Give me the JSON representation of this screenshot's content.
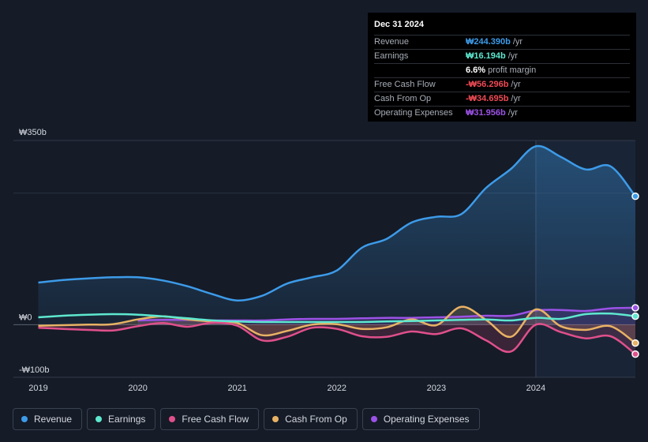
{
  "chart_data": {
    "type": "area",
    "currency": "₩",
    "y_unit": "b",
    "ylim": [
      -100,
      350
    ],
    "y_ticks": [
      {
        "value": 350,
        "label": "₩350b"
      },
      {
        "value": 0,
        "label": "₩0"
      },
      {
        "value": -100,
        "label": "-₩100b"
      }
    ],
    "x_ticks": [
      {
        "value": 2019,
        "label": "2019"
      },
      {
        "value": 2020,
        "label": "2020"
      },
      {
        "value": 2021,
        "label": "2021"
      },
      {
        "value": 2022,
        "label": "2022"
      },
      {
        "value": 2023,
        "label": "2023"
      },
      {
        "value": 2024,
        "label": "2024"
      }
    ],
    "xlim": [
      2018.75,
      2025.0
    ],
    "highlight_from": 2024.0,
    "series": [
      {
        "name": "Revenue",
        "color": "#3d9be9",
        "fill": true,
        "x": [
          2019.0,
          2019.25,
          2019.5,
          2019.75,
          2020.0,
          2020.25,
          2020.5,
          2020.75,
          2021.0,
          2021.25,
          2021.5,
          2021.75,
          2022.0,
          2022.25,
          2022.5,
          2022.75,
          2023.0,
          2023.25,
          2023.5,
          2023.75,
          2024.0,
          2024.25,
          2024.5,
          2024.75,
          2025.0
        ],
        "values": [
          80,
          85,
          88,
          90,
          90,
          84,
          73,
          58,
          46,
          55,
          78,
          90,
          103,
          146,
          163,
          194,
          205,
          210,
          260,
          296,
          339,
          319,
          295,
          301,
          244
        ]
      },
      {
        "name": "Earnings",
        "color": "#5ee8d0",
        "fill": false,
        "x": [
          2019.0,
          2019.25,
          2019.5,
          2019.75,
          2020.0,
          2020.25,
          2020.5,
          2020.75,
          2021.0,
          2021.25,
          2021.5,
          2021.75,
          2022.0,
          2022.25,
          2022.5,
          2022.75,
          2023.0,
          2023.25,
          2023.5,
          2023.75,
          2024.0,
          2024.25,
          2024.5,
          2024.75,
          2025.0
        ],
        "values": [
          14,
          17,
          19,
          20,
          19,
          16,
          12,
          8,
          6,
          5,
          5,
          5,
          5,
          5,
          6,
          7,
          8,
          9,
          10,
          8,
          13,
          11,
          20,
          21,
          16
        ]
      },
      {
        "name": "Free Cash Flow",
        "color": "#e0508b",
        "fill": true,
        "x": [
          2019.0,
          2019.25,
          2019.5,
          2019.75,
          2020.0,
          2020.25,
          2020.5,
          2020.75,
          2021.0,
          2021.25,
          2021.5,
          2021.75,
          2022.0,
          2022.25,
          2022.5,
          2022.75,
          2023.0,
          2023.25,
          2023.5,
          2023.75,
          2024.0,
          2024.25,
          2024.5,
          2024.75,
          2025.0
        ],
        "values": [
          -6,
          -8,
          -10,
          -11,
          -3,
          3,
          -4,
          4,
          -2,
          -30,
          -23,
          -6,
          -8,
          -22,
          -23,
          -13,
          -18,
          -7,
          -30,
          -51,
          0,
          -14,
          -26,
          -22,
          -56
        ]
      },
      {
        "name": "Cash From Op",
        "color": "#e8b264",
        "fill": true,
        "x": [
          2019.0,
          2019.25,
          2019.5,
          2019.75,
          2020.0,
          2020.25,
          2020.5,
          2020.75,
          2021.0,
          2021.25,
          2021.5,
          2021.75,
          2022.0,
          2022.25,
          2022.5,
          2022.75,
          2023.0,
          2023.25,
          2023.5,
          2023.75,
          2024.0,
          2024.25,
          2024.5,
          2024.75,
          2025.0
        ],
        "values": [
          -2,
          -1,
          0,
          1,
          10,
          16,
          10,
          6,
          3,
          -20,
          -12,
          0,
          1,
          -8,
          -5,
          10,
          -1,
          34,
          9,
          -23,
          29,
          -3,
          -10,
          -3,
          -35
        ]
      },
      {
        "name": "Operating Expenses",
        "color": "#9b52e6",
        "fill": true,
        "x": [
          2020.0,
          2020.25,
          2020.5,
          2020.75,
          2021.0,
          2021.25,
          2021.5,
          2021.75,
          2022.0,
          2022.25,
          2022.5,
          2022.75,
          2023.0,
          2023.25,
          2023.5,
          2023.75,
          2024.0,
          2024.25,
          2024.5,
          2024.75,
          2025.0
        ],
        "values": [
          8,
          9,
          9,
          8,
          8,
          8,
          10,
          11,
          11,
          12,
          13,
          13,
          14,
          15,
          17,
          17,
          27,
          28,
          26,
          31,
          32
        ]
      }
    ]
  },
  "tooltip": {
    "date": "Dec 31 2024",
    "rows": [
      {
        "label": "Revenue",
        "value": "₩244.390b",
        "unit": "/yr",
        "color": "#3d9be9"
      },
      {
        "label": "Earnings",
        "value": "₩16.194b",
        "unit": "/yr",
        "color": "#5ee8d0"
      },
      {
        "label": "",
        "value": "6.6%",
        "unit": "profit margin",
        "color": "#ffffff"
      },
      {
        "label": "Free Cash Flow",
        "value": "-₩56.296b",
        "unit": "/yr",
        "color": "#ef4a55"
      },
      {
        "label": "Cash From Op",
        "value": "-₩34.695b",
        "unit": "/yr",
        "color": "#ef4a55"
      },
      {
        "label": "Operating Expenses",
        "value": "₩31.956b",
        "unit": "/yr",
        "color": "#9b52e6"
      }
    ]
  },
  "legend": [
    {
      "label": "Revenue",
      "color": "#3d9be9"
    },
    {
      "label": "Earnings",
      "color": "#5ee8d0"
    },
    {
      "label": "Free Cash Flow",
      "color": "#e0508b"
    },
    {
      "label": "Cash From Op",
      "color": "#e8b264"
    },
    {
      "label": "Operating Expenses",
      "color": "#9b52e6"
    }
  ]
}
